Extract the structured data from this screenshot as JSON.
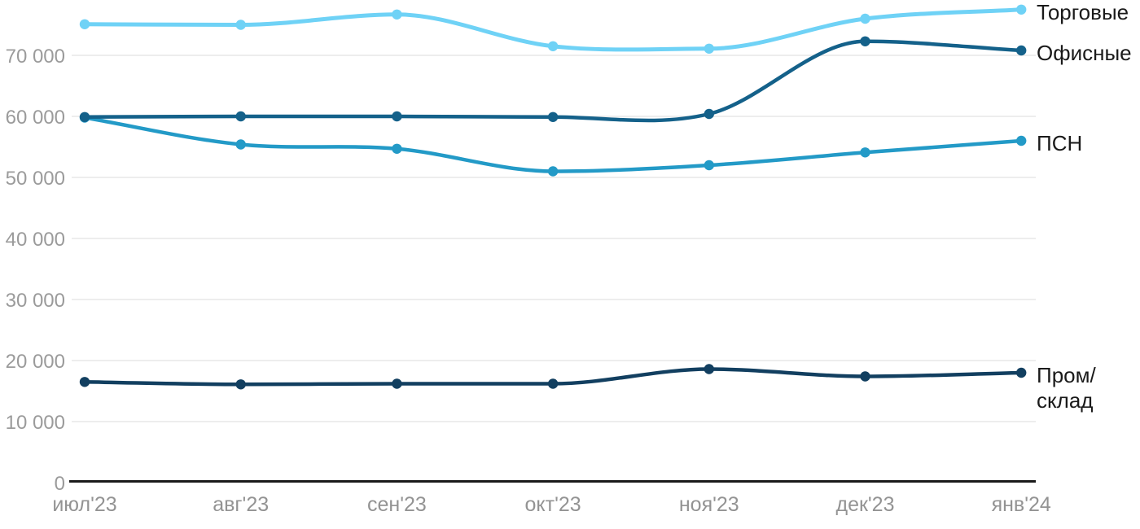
{
  "chart_data": {
    "type": "line",
    "title": "",
    "xlabel": "",
    "ylabel": "",
    "x": [
      "июл'23",
      "авг'23",
      "сен'23",
      "окт'23",
      "ноя'23",
      "дек'23",
      "янв'24"
    ],
    "series": [
      {
        "id": "torgovye",
        "name": "Торговые",
        "label_lines": [
          "Торговые"
        ],
        "color": "#6fd2f6",
        "values": [
          75100,
          75000,
          76700,
          71500,
          71100,
          76000,
          77500
        ]
      },
      {
        "id": "ofisnye",
        "name": "Офисные",
        "label_lines": [
          "Офисные"
        ],
        "color": "#14618a",
        "values": [
          59900,
          60000,
          60000,
          59900,
          60400,
          72300,
          70800
        ]
      },
      {
        "id": "psn",
        "name": "ПСН",
        "label_lines": [
          "ПСН"
        ],
        "color": "#239ac7",
        "values": [
          59800,
          55400,
          54700,
          51000,
          52000,
          54100,
          56000
        ]
      },
      {
        "id": "prom-sklad",
        "name": "Пром/склад",
        "label_lines": [
          "Пром/",
          "склад"
        ],
        "color": "#123f60",
        "values": [
          16500,
          16100,
          16200,
          16200,
          18600,
          17400,
          18000
        ]
      }
    ],
    "y_ticks": [
      0,
      10000,
      20000,
      30000,
      40000,
      50000,
      60000,
      70000
    ],
    "y_tick_labels": [
      "0",
      "10 000",
      "20 000",
      "30 000",
      "40 000",
      "50 000",
      "60 000",
      "70 000"
    ],
    "ylim": [
      0,
      79000
    ],
    "grid": "horizontal",
    "legend_position": "right-of-line-end",
    "axis_color": "#1a1a1a",
    "gridline_color": "#e7e7e7",
    "tick_label_color": "#9b9b9b",
    "series_label_color": "#1a1a1a"
  }
}
